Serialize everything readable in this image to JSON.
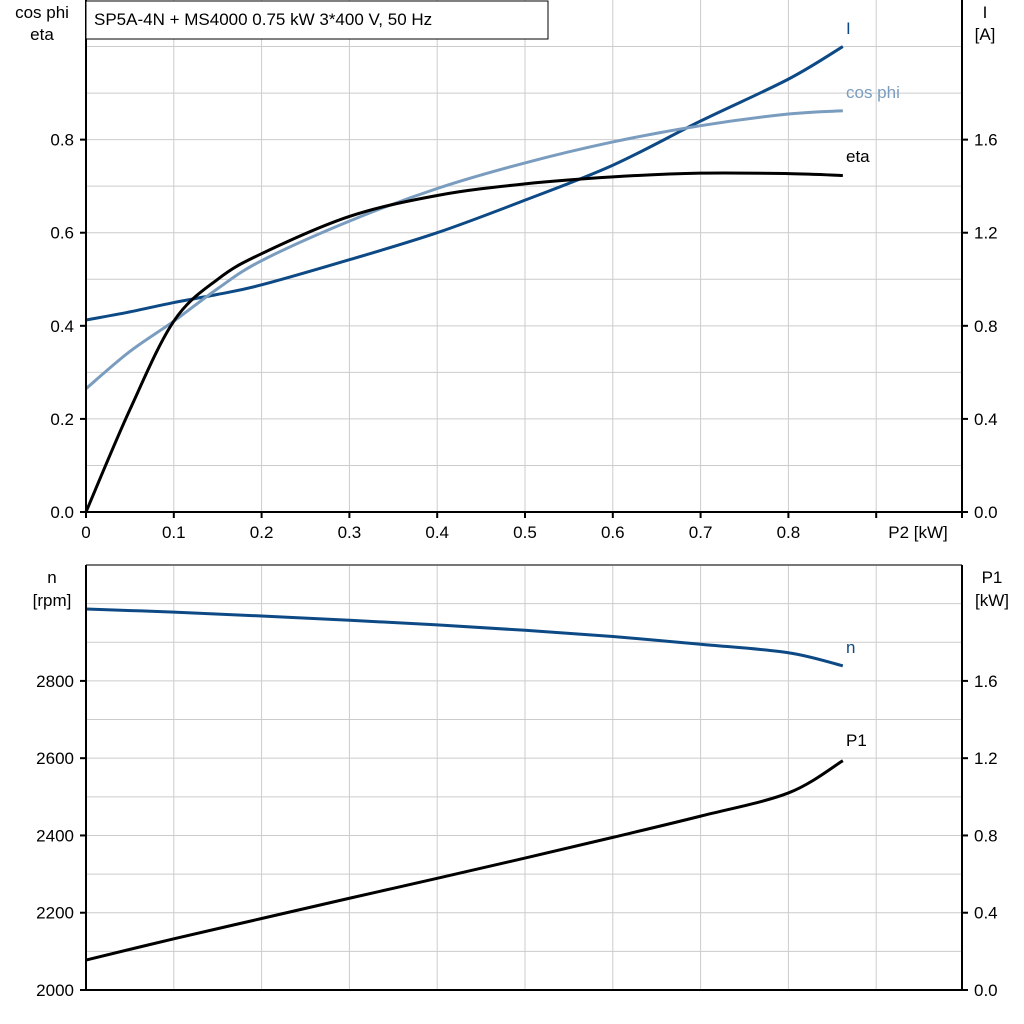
{
  "chart_data": [
    {
      "type": "line",
      "title": "SP5A-4N + MS4000   0.75 kW   3*400 V, 50 Hz",
      "xlabel": "P2 [kW]",
      "ylabel_left": [
        "cos phi",
        "eta"
      ],
      "ylabel_right": [
        "I",
        "[A]"
      ],
      "xlim": [
        0,
        0.99
      ],
      "ylim_left": [
        0,
        1.1
      ],
      "ylim_right": [
        0,
        2.2
      ],
      "x_ticks": [
        "0",
        "0.1",
        "0.2",
        "0.3",
        "0.4",
        "0.5",
        "0.6",
        "0.7",
        "0.8"
      ],
      "y_ticks_left": [
        "0.0",
        "0.2",
        "0.4",
        "0.6",
        "0.8"
      ],
      "y_ticks_right": [
        "0.0",
        "0.4",
        "0.8",
        "1.2",
        "1.6"
      ],
      "grid": true,
      "x": [
        0,
        0.05,
        0.1,
        0.15,
        0.2,
        0.3,
        0.4,
        0.5,
        0.6,
        0.7,
        0.8,
        0.862
      ],
      "series": [
        {
          "name": "I",
          "axis": "right",
          "color": "#0d4a85",
          "values": [
            0.825,
            0.86,
            0.9,
            0.935,
            0.976,
            1.084,
            1.2,
            1.34,
            1.49,
            1.68,
            1.86,
            2.0
          ]
        },
        {
          "name": "cos phi",
          "axis": "left",
          "color": "#7a9dbf",
          "values": [
            0.265,
            0.345,
            0.41,
            0.48,
            0.54,
            0.625,
            0.695,
            0.75,
            0.795,
            0.83,
            0.855,
            0.862
          ]
        },
        {
          "name": "eta",
          "axis": "left",
          "color": "#000000",
          "values": [
            0,
            0.22,
            0.41,
            0.5,
            0.555,
            0.635,
            0.68,
            0.705,
            0.72,
            0.728,
            0.727,
            0.723
          ]
        }
      ]
    },
    {
      "type": "line",
      "ylabel_left": [
        "n",
        "[rpm]"
      ],
      "ylabel_right": [
        "P1",
        "[kW]"
      ],
      "xlim": [
        0,
        0.99
      ],
      "ylim_left": [
        2000,
        3100
      ],
      "ylim_right": [
        0,
        2.2
      ],
      "y_ticks_left": [
        "2000",
        "2200",
        "2400",
        "2600",
        "2800"
      ],
      "y_ticks_right": [
        "0.0",
        "0.4",
        "0.8",
        "1.2",
        "1.6"
      ],
      "grid": true,
      "x": [
        0,
        0.1,
        0.2,
        0.3,
        0.4,
        0.5,
        0.6,
        0.7,
        0.8,
        0.862
      ],
      "series": [
        {
          "name": "n",
          "axis": "left",
          "color": "#0d4a85",
          "values": [
            2986,
            2978,
            2968,
            2957,
            2945,
            2931,
            2915,
            2895,
            2873,
            2839
          ]
        },
        {
          "name": "P1",
          "axis": "right",
          "color": "#000000",
          "values": [
            0.155,
            0.265,
            0.37,
            0.475,
            0.578,
            0.683,
            0.79,
            0.9,
            1.02,
            1.187
          ]
        }
      ]
    }
  ]
}
